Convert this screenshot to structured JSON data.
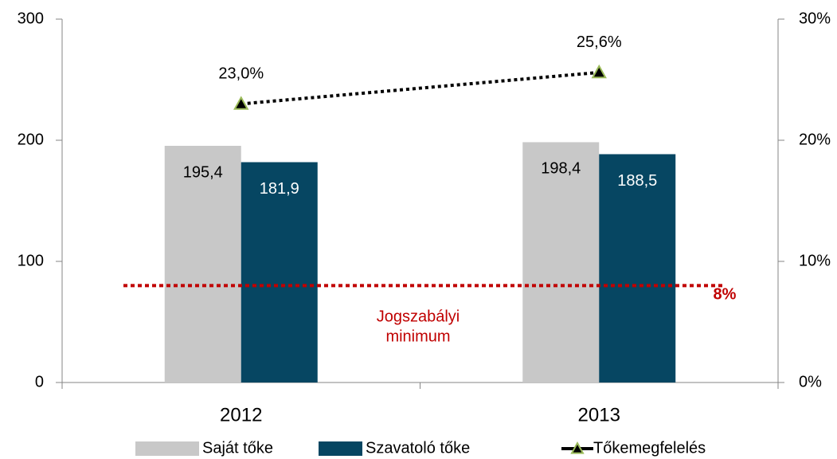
{
  "chart_data": {
    "type": "bar",
    "categories": [
      "2012",
      "2013"
    ],
    "series": [
      {
        "name": "Saját tőke",
        "color": "#c8c8c8",
        "values": [
          195.4,
          198.4
        ],
        "value_labels": [
          "195,4",
          "198,4"
        ]
      },
      {
        "name": "Szavatoló tőke",
        "color": "#064662",
        "values": [
          181.9,
          188.5
        ],
        "value_labels": [
          "181,9",
          "188,5"
        ]
      },
      {
        "name": "Tőkemegfelelés",
        "type": "line",
        "axis": "y2",
        "color": "#000000",
        "marker_color": "#9bbb59",
        "values": [
          23.0,
          25.6
        ],
        "value_labels": [
          "23,0%",
          "25,6%"
        ]
      }
    ],
    "ylim": [
      0,
      300
    ],
    "yticks": [
      0,
      100,
      200,
      300
    ],
    "y2lim": [
      0,
      30
    ],
    "y2ticks": [
      {
        "value": 0,
        "label": "0%"
      },
      {
        "value": 10,
        "label": "10%"
      },
      {
        "value": 20,
        "label": "20%"
      },
      {
        "value": 30,
        "label": "30%"
      }
    ],
    "reference_line": {
      "value": 8,
      "label": "8%",
      "axis": "y2",
      "color": "#c00000",
      "annotation": [
        "Jogszabályi",
        "minimum"
      ]
    },
    "legend": "bottom"
  }
}
